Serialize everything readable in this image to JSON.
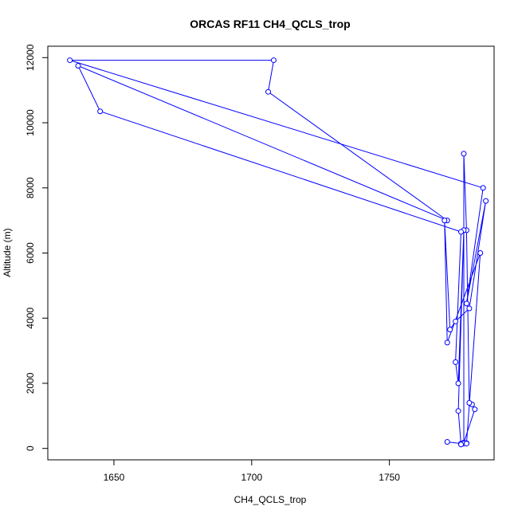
{
  "chart_data": {
    "type": "line",
    "title": "ORCAS RF11 CH4_QCLS_trop",
    "xlabel": "CH4_QCLS_trop",
    "ylabel": "Altitude (m)",
    "xlim": [
      1626,
      1788
    ],
    "ylim": [
      -350,
      12350
    ],
    "xticks": [
      1650,
      1700,
      1750
    ],
    "yticks": [
      0,
      2000,
      4000,
      6000,
      8000,
      10000,
      12000
    ],
    "grid": false,
    "legend": "none",
    "series_color": "#0000ff",
    "marker": "open-circle",
    "points": [
      {
        "x": 1771,
        "y": 200
      },
      {
        "x": 1776,
        "y": 150
      },
      {
        "x": 1778,
        "y": 160
      },
      {
        "x": 1777,
        "y": 180
      },
      {
        "x": 1781,
        "y": 1200
      },
      {
        "x": 1780,
        "y": 1350
      },
      {
        "x": 1779,
        "y": 1400
      },
      {
        "x": 1778,
        "y": 6700
      },
      {
        "x": 1777,
        "y": 9050
      },
      {
        "x": 1777,
        "y": 150
      },
      {
        "x": 1776,
        "y": 120
      },
      {
        "x": 1775,
        "y": 1150
      },
      {
        "x": 1777,
        "y": 6700
      },
      {
        "x": 1775,
        "y": 2000
      },
      {
        "x": 1774,
        "y": 2650
      },
      {
        "x": 1776,
        "y": 6650
      },
      {
        "x": 1645,
        "y": 10350
      },
      {
        "x": 1637,
        "y": 11750
      },
      {
        "x": 1771,
        "y": 7000
      },
      {
        "x": 1706,
        "y": 10950
      },
      {
        "x": 1708,
        "y": 11920
      },
      {
        "x": 1634,
        "y": 11920
      },
      {
        "x": 1784,
        "y": 8000
      },
      {
        "x": 1778,
        "y": 4450
      },
      {
        "x": 1785,
        "y": 7600
      },
      {
        "x": 1779,
        "y": 4300
      },
      {
        "x": 1774,
        "y": 3900
      },
      {
        "x": 1772,
        "y": 3650
      },
      {
        "x": 1770,
        "y": 7000
      },
      {
        "x": 1771,
        "y": 3250
      },
      {
        "x": 1783,
        "y": 6000
      },
      {
        "x": 1778,
        "y": 150
      }
    ]
  }
}
